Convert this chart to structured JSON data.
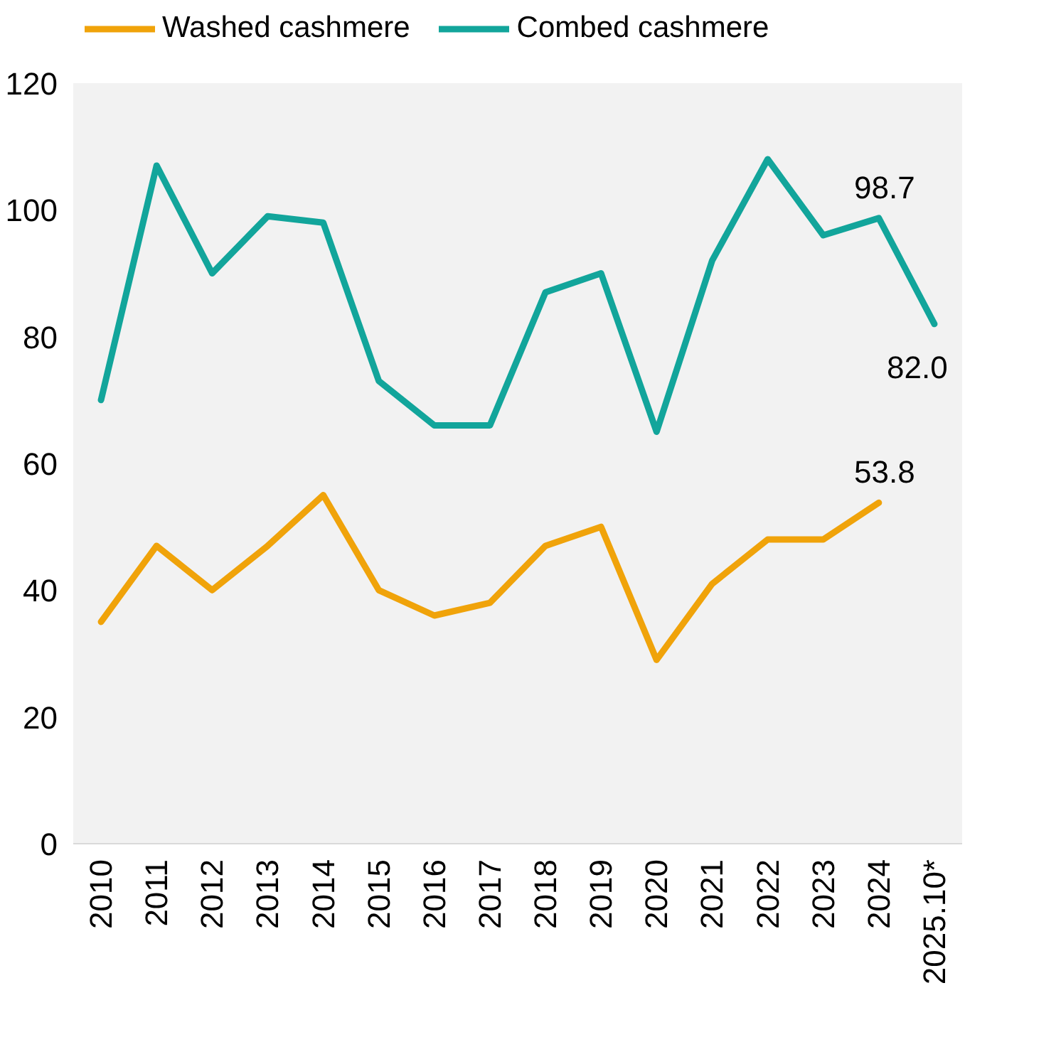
{
  "chart_data": {
    "type": "line",
    "categories": [
      "2010",
      "2011",
      "2012",
      "2013",
      "2014",
      "2015",
      "2016",
      "2017",
      "2018",
      "2019",
      "2020",
      "2021",
      "2022",
      "2023",
      "2024",
      "2025.10*"
    ],
    "series": [
      {
        "name": "Washed cashmere",
        "color": "#f0a30a",
        "values": [
          35,
          47,
          40,
          47,
          55,
          40,
          36,
          38,
          47,
          50,
          29,
          41,
          48,
          48,
          53.8,
          null
        ],
        "value_labels": [
          null,
          null,
          null,
          null,
          null,
          null,
          null,
          null,
          null,
          null,
          null,
          null,
          null,
          null,
          "53.8",
          null
        ]
      },
      {
        "name": "Combed cashmere",
        "color": "#12a59b",
        "values": [
          70,
          107,
          90,
          99,
          98,
          73,
          66,
          66,
          87,
          90,
          65,
          92,
          108,
          96,
          98.7,
          82.0
        ],
        "value_labels": [
          null,
          null,
          null,
          null,
          null,
          null,
          null,
          null,
          null,
          null,
          null,
          null,
          null,
          null,
          "98.7",
          "82.0"
        ]
      }
    ],
    "ylim": [
      0,
      120
    ],
    "yticks": [
      0,
      20,
      40,
      60,
      80,
      100,
      120
    ],
    "grid": false,
    "legend": "top",
    "marker": "none",
    "line_style": "solid"
  }
}
